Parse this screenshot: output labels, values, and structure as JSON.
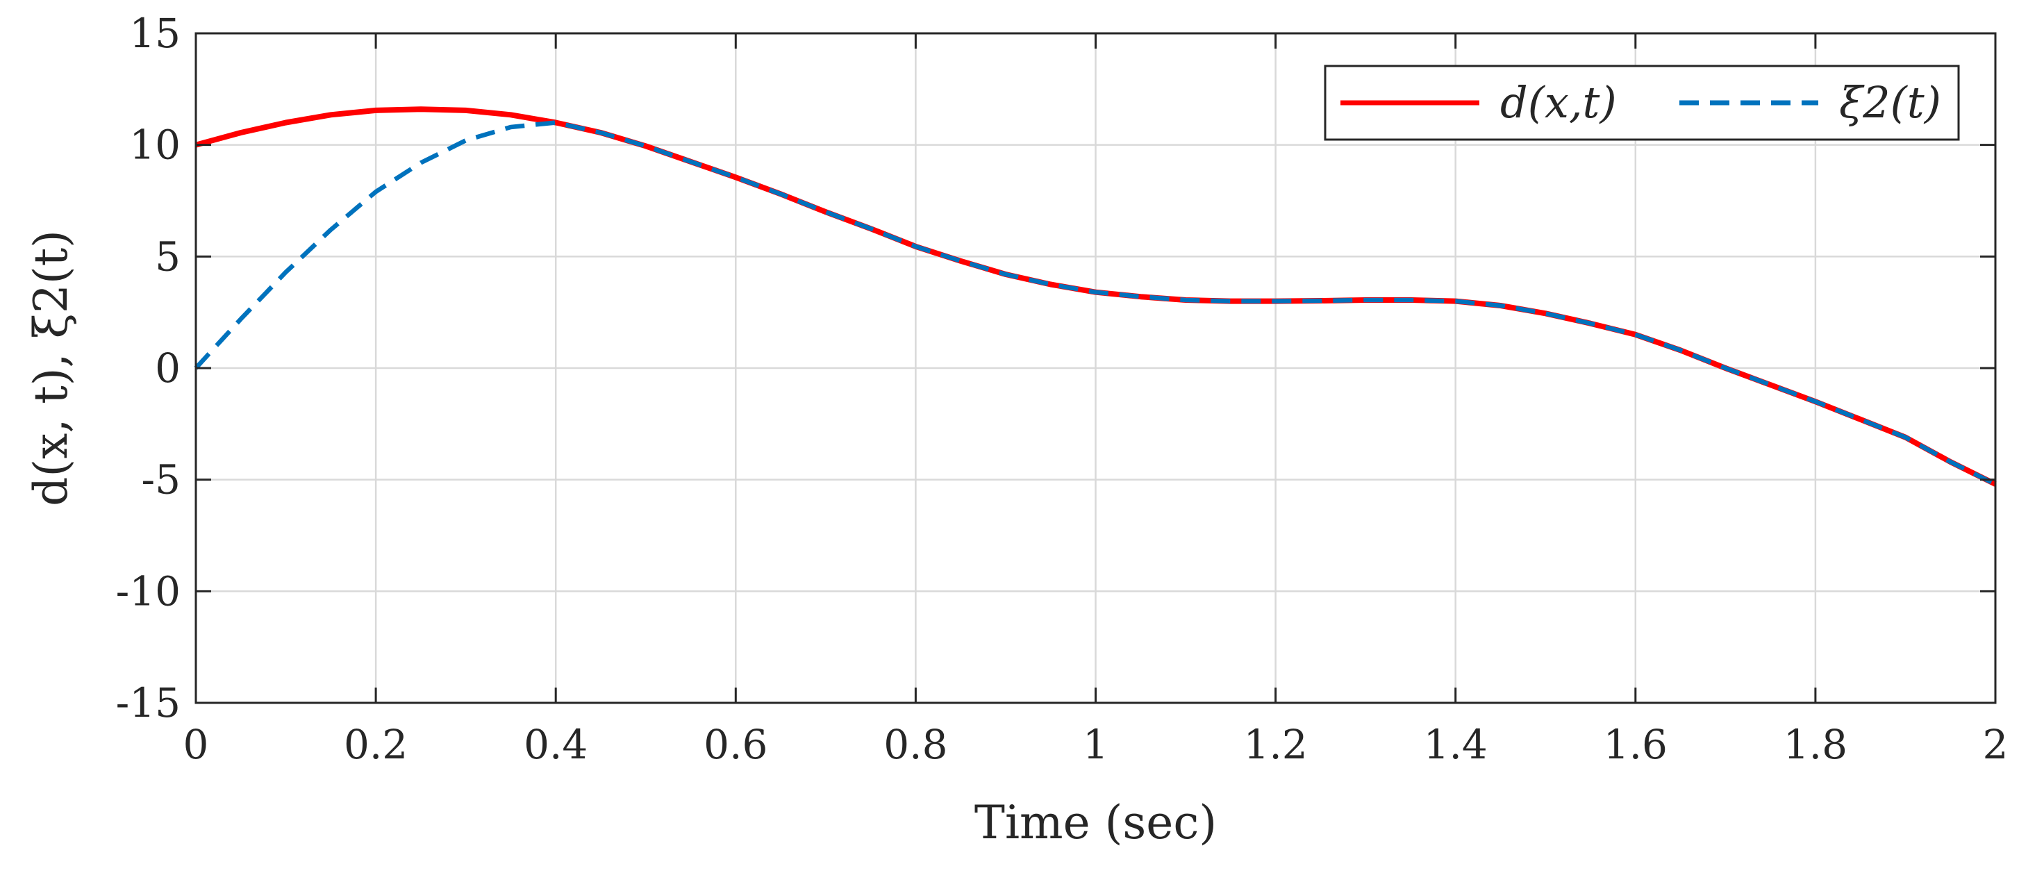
{
  "chart_data": {
    "type": "line",
    "xlabel": "Time (sec)",
    "ylabel": "d(x, t),   ξ2(t)",
    "xlim": [
      0,
      2
    ],
    "ylim": [
      -15,
      15
    ],
    "xticks": [
      0,
      0.2,
      0.4,
      0.6,
      0.8,
      1,
      1.2,
      1.4,
      1.6,
      1.8,
      2
    ],
    "xtick_labels": [
      "0",
      "0.2",
      "0.4",
      "0.6",
      "0.8",
      "1",
      "1.2",
      "1.4",
      "1.6",
      "1.8",
      "2"
    ],
    "yticks": [
      -15,
      -10,
      -5,
      0,
      5,
      10,
      15
    ],
    "ytick_labels": [
      "-15",
      "-10",
      "-5",
      "0",
      "5",
      "10",
      "15"
    ],
    "grid": true,
    "legend_position": "top-right",
    "legend_orientation": "horizontal",
    "series": [
      {
        "name": "d(x,t)",
        "color": "#ff0000",
        "line_style": "solid",
        "x": [
          0,
          0.05,
          0.1,
          0.15,
          0.2,
          0.25,
          0.3,
          0.35,
          0.4,
          0.45,
          0.5,
          0.55,
          0.6,
          0.65,
          0.7,
          0.75,
          0.8,
          0.85,
          0.9,
          0.95,
          1.0,
          1.05,
          1.1,
          1.15,
          1.2,
          1.25,
          1.3,
          1.35,
          1.4,
          1.45,
          1.5,
          1.55,
          1.6,
          1.65,
          1.7,
          1.75,
          1.8,
          1.85,
          1.9,
          1.95,
          2.0
        ],
        "y": [
          10.0,
          10.55,
          11.0,
          11.35,
          11.55,
          11.6,
          11.55,
          11.35,
          11.0,
          10.55,
          9.95,
          9.25,
          8.55,
          7.8,
          7.0,
          6.25,
          5.45,
          4.8,
          4.2,
          3.75,
          3.4,
          3.2,
          3.05,
          3.0,
          3.0,
          3.02,
          3.05,
          3.05,
          3.0,
          2.8,
          2.45,
          2.0,
          1.5,
          0.8,
          0.0,
          -0.75,
          -1.5,
          -2.3,
          -3.1,
          -4.2,
          -5.2
        ]
      },
      {
        "name": "ξ2(t)",
        "color": "#0072bd",
        "line_style": "dashed",
        "x": [
          0,
          0.05,
          0.1,
          0.15,
          0.2,
          0.25,
          0.3,
          0.35,
          0.4,
          0.45,
          0.5,
          0.55,
          0.6,
          0.65,
          0.7,
          0.75,
          0.8,
          0.85,
          0.9,
          0.95,
          1.0,
          1.05,
          1.1,
          1.15,
          1.2,
          1.25,
          1.3,
          1.35,
          1.4,
          1.45,
          1.5,
          1.55,
          1.6,
          1.65,
          1.7,
          1.75,
          1.8,
          1.85,
          1.9,
          1.95,
          2.0
        ],
        "y": [
          0.0,
          2.2,
          4.3,
          6.2,
          7.9,
          9.2,
          10.2,
          10.8,
          11.0,
          10.55,
          9.95,
          9.25,
          8.55,
          7.8,
          7.0,
          6.25,
          5.45,
          4.8,
          4.2,
          3.75,
          3.4,
          3.2,
          3.05,
          3.0,
          3.0,
          3.02,
          3.05,
          3.05,
          3.0,
          2.8,
          2.45,
          2.0,
          1.5,
          0.8,
          0.0,
          -0.75,
          -1.5,
          -2.3,
          -3.1,
          -4.2,
          -5.2
        ]
      }
    ]
  }
}
